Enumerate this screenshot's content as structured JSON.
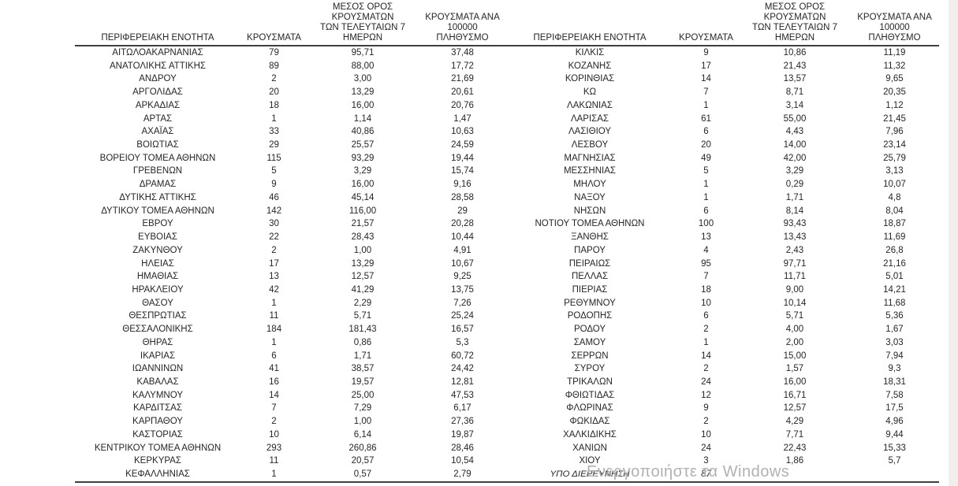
{
  "page": {
    "watermark": "Ενεργοποιήστε τα Windows"
  },
  "table": {
    "headers": {
      "region": "ΠΕΡΙΦΕΡΕΙΑΚΗ ΕΝΟΤΗΤΑ",
      "cases": "ΚΡΟΥΣΜΑΤΑ",
      "avg7_line1": "ΜΕΣΟΣ ΟΡΟΣ ΚΡΟΥΣΜΑΤΩΝ",
      "avg7_line2": "ΤΩΝ ΤΕΛΕΥΤΑΙΩΝ 7",
      "avg7_line3": "ΗΜΕΡΩΝ",
      "per100k_line1": "ΚΡΟΥΣΜΑΤΑ ΑΝΑ 100000",
      "per100k_line2": "ΠΛΗΘΥΣΜΟ"
    },
    "left_rows": [
      [
        "ΑΙΤΩΛΟΑΚΑΡΝΑΝΙΑΣ",
        "79",
        "95,71",
        "37,48"
      ],
      [
        "ΑΝΑΤΟΛΙΚΗΣ ΑΤΤΙΚΗΣ",
        "89",
        "88,00",
        "17,72"
      ],
      [
        "ΑΝΔΡΟΥ",
        "2",
        "3,00",
        "21,69"
      ],
      [
        "ΑΡΓΟΛΙΔΑΣ",
        "20",
        "13,29",
        "20,61"
      ],
      [
        "ΑΡΚΑΔΙΑΣ",
        "18",
        "16,00",
        "20,76"
      ],
      [
        "ΑΡΤΑΣ",
        "1",
        "1,14",
        "1,47"
      ],
      [
        "ΑΧΑΪΑΣ",
        "33",
        "40,86",
        "10,63"
      ],
      [
        "ΒΟΙΩΤΙΑΣ",
        "29",
        "25,57",
        "24,59"
      ],
      [
        "ΒΟΡΕΙΟΥ ΤΟΜΕΑ ΑΘΗΝΩΝ",
        "115",
        "93,29",
        "19,44"
      ],
      [
        "ΓΡΕΒΕΝΩΝ",
        "5",
        "3,29",
        "15,74"
      ],
      [
        "ΔΡΑΜΑΣ",
        "9",
        "16,00",
        "9,16"
      ],
      [
        "ΔΥΤΙΚΗΣ ΑΤΤΙΚΗΣ",
        "46",
        "45,14",
        "28,58"
      ],
      [
        "ΔΥΤΙΚΟΥ ΤΟΜΕΑ ΑΘΗΝΩΝ",
        "142",
        "116,00",
        "29"
      ],
      [
        "ΕΒΡΟΥ",
        "30",
        "21,57",
        "20,28"
      ],
      [
        "ΕΥΒΟΙΑΣ",
        "22",
        "28,43",
        "10,44"
      ],
      [
        "ΖΑΚΥΝΘΟΥ",
        "2",
        "1,00",
        "4,91"
      ],
      [
        "ΗΛΕΙΑΣ",
        "17",
        "13,29",
        "10,67"
      ],
      [
        "ΗΜΑΘΙΑΣ",
        "13",
        "12,57",
        "9,25"
      ],
      [
        "ΗΡΑΚΛΕΙΟΥ",
        "42",
        "41,29",
        "13,75"
      ],
      [
        "ΘΑΣΟΥ",
        "1",
        "2,29",
        "7,26"
      ],
      [
        "ΘΕΣΠΡΩΤΙΑΣ",
        "11",
        "5,71",
        "25,24"
      ],
      [
        "ΘΕΣΣΑΛΟΝΙΚΗΣ",
        "184",
        "181,43",
        "16,57"
      ],
      [
        "ΘΗΡΑΣ",
        "1",
        "0,86",
        "5,3"
      ],
      [
        "ΙΚΑΡΙΑΣ",
        "6",
        "1,71",
        "60,72"
      ],
      [
        "ΙΩΑΝΝΙΝΩΝ",
        "41",
        "38,57",
        "24,42"
      ],
      [
        "ΚΑΒΑΛΑΣ",
        "16",
        "19,57",
        "12,81"
      ],
      [
        "ΚΑΛΥΜΝΟΥ",
        "14",
        "25,00",
        "47,53"
      ],
      [
        "ΚΑΡΔΙΤΣΑΣ",
        "7",
        "7,29",
        "6,17"
      ],
      [
        "ΚΑΡΠΑΘΟΥ",
        "2",
        "1,00",
        "27,36"
      ],
      [
        "ΚΑΣΤΟΡΙΑΣ",
        "10",
        "6,14",
        "19,87"
      ],
      [
        "ΚΕΝΤΡΙΚΟΥ ΤΟΜΕΑ ΑΘΗΝΩΝ",
        "293",
        "260,86",
        "28,46"
      ],
      [
        "ΚΕΡΚΥΡΑΣ",
        "11",
        "20,57",
        "10,54"
      ],
      [
        "ΚΕΦΑΛΛΗΝΙΑΣ",
        "1",
        "0,57",
        "2,79"
      ]
    ],
    "right_rows": [
      [
        "ΚΙΛΚΙΣ",
        "9",
        "10,86",
        "11,19"
      ],
      [
        "ΚΟΖΑΝΗΣ",
        "17",
        "21,43",
        "11,32"
      ],
      [
        "ΚΟΡΙΝΘΙΑΣ",
        "14",
        "13,57",
        "9,65"
      ],
      [
        "ΚΩ",
        "7",
        "8,71",
        "20,35"
      ],
      [
        "ΛΑΚΩΝΙΑΣ",
        "1",
        "3,14",
        "1,12"
      ],
      [
        "ΛΑΡΙΣΑΣ",
        "61",
        "55,00",
        "21,45"
      ],
      [
        "ΛΑΣΙΘΙΟΥ",
        "6",
        "4,43",
        "7,96"
      ],
      [
        "ΛΕΣΒΟΥ",
        "20",
        "14,00",
        "23,14"
      ],
      [
        "ΜΑΓΝΗΣΙΑΣ",
        "49",
        "42,00",
        "25,79"
      ],
      [
        "ΜΕΣΣΗΝΙΑΣ",
        "5",
        "3,29",
        "3,13"
      ],
      [
        "ΜΗΛΟΥ",
        "1",
        "0,29",
        "10,07"
      ],
      [
        "ΝΑΞΟΥ",
        "1",
        "1,71",
        "4,8"
      ],
      [
        "ΝΗΣΩΝ",
        "6",
        "8,14",
        "8,04"
      ],
      [
        "ΝΟΤΙΟΥ ΤΟΜΕΑ ΑΘΗΝΩΝ",
        "100",
        "93,43",
        "18,87"
      ],
      [
        "ΞΑΝΘΗΣ",
        "13",
        "13,43",
        "11,69"
      ],
      [
        "ΠΑΡΟΥ",
        "4",
        "2,43",
        "26,8"
      ],
      [
        "ΠΕΙΡΑΙΩΣ",
        "95",
        "97,71",
        "21,16"
      ],
      [
        "ΠΕΛΛΑΣ",
        "7",
        "11,71",
        "5,01"
      ],
      [
        "ΠΙΕΡΙΑΣ",
        "18",
        "9,00",
        "14,21"
      ],
      [
        "ΡΕΘΥΜΝΟΥ",
        "10",
        "10,14",
        "11,68"
      ],
      [
        "ΡΟΔΟΠΗΣ",
        "6",
        "5,71",
        "5,36"
      ],
      [
        "ΡΟΔΟΥ",
        "2",
        "4,00",
        "1,67"
      ],
      [
        "ΣΑΜΟΥ",
        "1",
        "2,00",
        "3,03"
      ],
      [
        "ΣΕΡΡΩΝ",
        "14",
        "15,00",
        "7,94"
      ],
      [
        "ΣΥΡΟΥ",
        "2",
        "1,57",
        "9,3"
      ],
      [
        "ΤΡΙΚΑΛΩΝ",
        "24",
        "16,00",
        "18,31"
      ],
      [
        "ΦΘΙΩΤΙΔΑΣ",
        "12",
        "16,71",
        "7,58"
      ],
      [
        "ΦΛΩΡΙΝΑΣ",
        "9",
        "12,57",
        "17,5"
      ],
      [
        "ΦΩΚΙΔΑΣ",
        "2",
        "4,29",
        "4,96"
      ],
      [
        "ΧΑΛΚΙΔΙΚΗΣ",
        "10",
        "7,71",
        "9,44"
      ],
      [
        "ΧΑΝΙΩΝ",
        "24",
        "22,43",
        "15,33"
      ],
      [
        "ΧΙΟΥ",
        "3",
        "1,86",
        "5,7"
      ],
      [
        "ΥΠΟ ΔΙΕΡΕΥΝΗΣΗ",
        "87",
        "",
        "",
        "italic"
      ]
    ]
  }
}
